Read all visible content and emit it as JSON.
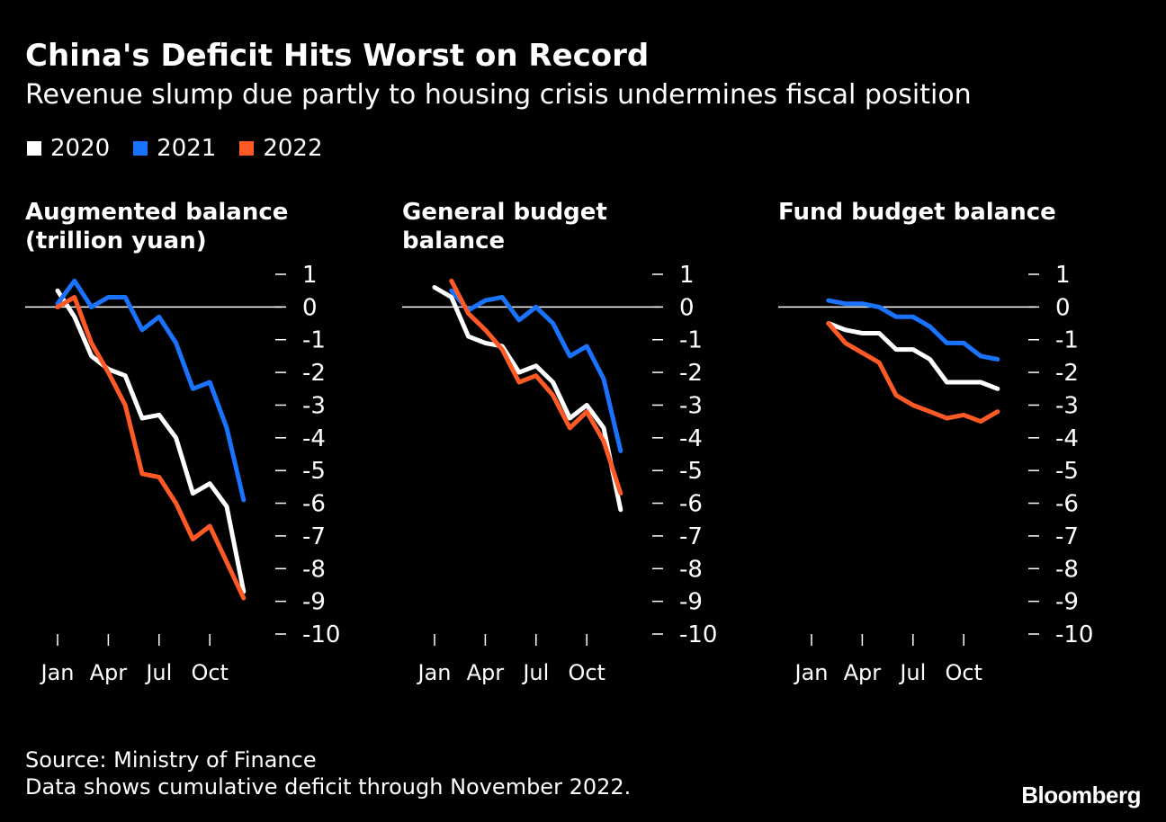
{
  "header": {
    "title": "China's Deficit Hits Worst on Record",
    "subtitle": "Revenue slump due partly to housing crisis undermines fiscal position"
  },
  "legend": [
    {
      "label": "2020",
      "color": "#ffffff"
    },
    {
      "label": "2021",
      "color": "#1a73ff"
    },
    {
      "label": "2022",
      "color": "#ff5a26"
    }
  ],
  "footer": {
    "source": "Source: Ministry of Finance",
    "note": "Data shows cumulative deficit through November 2022.",
    "logo": "Bloomberg"
  },
  "chart_data": [
    {
      "type": "line",
      "title": "Augmented balance (trillion yuan)",
      "x_ticks": [
        "Jan",
        "Apr",
        "Jul",
        "Oct"
      ],
      "ylim": [
        -10,
        1
      ],
      "y_ticks": [
        "1",
        "0",
        "-1",
        "-2",
        "-3",
        "-4",
        "-5",
        "-6",
        "-7",
        "-8",
        "-9",
        "-10"
      ],
      "months": [
        1,
        2,
        3,
        4,
        5,
        6,
        7,
        8,
        9,
        10,
        11,
        12
      ],
      "series": [
        {
          "name": "2020",
          "color": "#ffffff",
          "values": [
            0.5,
            -0.3,
            -1.5,
            -1.9,
            -2.1,
            -3.4,
            -3.3,
            -4.0,
            -5.7,
            -5.4,
            -6.1,
            -8.7
          ]
        },
        {
          "name": "2021",
          "color": "#1a73ff",
          "values": [
            0.1,
            0.8,
            0.0,
            0.3,
            0.3,
            -0.7,
            -0.3,
            -1.1,
            -2.5,
            -2.3,
            -3.7,
            -5.9
          ]
        },
        {
          "name": "2022",
          "color": "#ff5a26",
          "values": [
            0.0,
            0.3,
            -1.1,
            -2.0,
            -3.0,
            -5.1,
            -5.2,
            -6.0,
            -7.1,
            -6.7,
            -7.8,
            -8.9
          ]
        }
      ]
    },
    {
      "type": "line",
      "title": "General budget balance",
      "x_ticks": [
        "Jan",
        "Apr",
        "Jul",
        "Oct"
      ],
      "ylim": [
        -10,
        1
      ],
      "y_ticks": [
        "1",
        "0",
        "-1",
        "-2",
        "-3",
        "-4",
        "-5",
        "-6",
        "-7",
        "-8",
        "-9",
        "-10"
      ],
      "months": [
        1,
        2,
        3,
        4,
        5,
        6,
        7,
        8,
        9,
        10,
        11,
        12
      ],
      "series": [
        {
          "name": "2020",
          "color": "#ffffff",
          "values": [
            0.6,
            0.3,
            -0.9,
            -1.1,
            -1.2,
            -2.0,
            -1.8,
            -2.3,
            -3.4,
            -3.0,
            -3.7,
            -6.2
          ]
        },
        {
          "name": "2021",
          "color": "#1a73ff",
          "values": [
            null,
            0.5,
            -0.1,
            0.2,
            0.3,
            -0.4,
            0.0,
            -0.5,
            -1.5,
            -1.2,
            -2.2,
            -4.4
          ]
        },
        {
          "name": "2022",
          "color": "#ff5a26",
          "values": [
            null,
            0.8,
            -0.2,
            -0.7,
            -1.3,
            -2.3,
            -2.1,
            -2.7,
            -3.7,
            -3.2,
            -4.1,
            -5.7
          ]
        }
      ]
    },
    {
      "type": "line",
      "title": "Fund budget balance",
      "x_ticks": [
        "Jan",
        "Apr",
        "Jul",
        "Oct"
      ],
      "ylim": [
        -10,
        1
      ],
      "y_ticks": [
        "1",
        "0",
        "-1",
        "-2",
        "-3",
        "-4",
        "-5",
        "-6",
        "-7",
        "-8",
        "-9",
        "-10"
      ],
      "months": [
        1,
        2,
        3,
        4,
        5,
        6,
        7,
        8,
        9,
        10,
        11,
        12
      ],
      "series": [
        {
          "name": "2020",
          "color": "#ffffff",
          "values": [
            null,
            -0.5,
            -0.7,
            -0.8,
            -0.8,
            -1.3,
            -1.3,
            -1.6,
            -2.3,
            -2.3,
            -2.3,
            -2.5
          ]
        },
        {
          "name": "2021",
          "color": "#1a73ff",
          "values": [
            null,
            0.2,
            0.1,
            0.1,
            0.0,
            -0.3,
            -0.3,
            -0.6,
            -1.1,
            -1.1,
            -1.5,
            -1.6
          ]
        },
        {
          "name": "2022",
          "color": "#ff5a26",
          "values": [
            null,
            -0.5,
            -1.1,
            -1.4,
            -1.7,
            -2.7,
            -3.0,
            -3.2,
            -3.4,
            -3.3,
            -3.5,
            -3.2
          ]
        }
      ]
    }
  ]
}
